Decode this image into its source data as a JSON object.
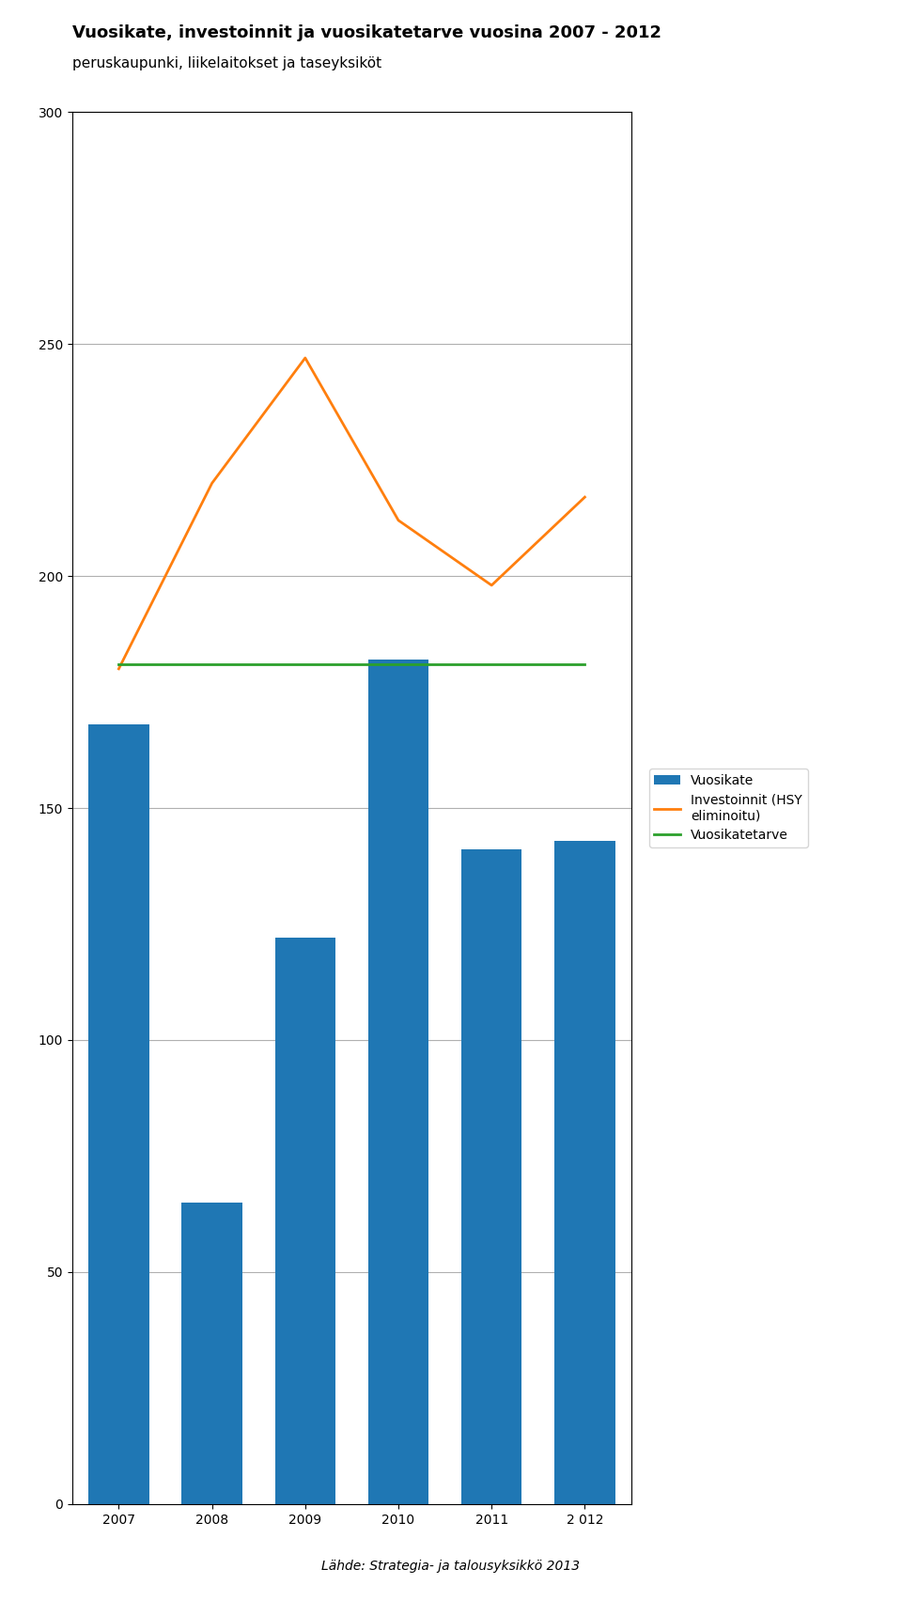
{
  "chart_data": {
    "type": "bar",
    "title": "Vuosikate, investoinnit ja vuosikatetarve vuosina 2007 - 2012",
    "subtitle": "peruskaupunki, liikelaitokset ja taseyksiköt",
    "annotations": [
      "Lähde: Strategia- ja talousyksikkö 2013"
    ],
    "categories": [
      "2007",
      "2008",
      "2009",
      "2010",
      "2011",
      "2 012"
    ],
    "series": [
      {
        "name": "Vuosikate",
        "type": "bar",
        "values": [
          168,
          65,
          122,
          182,
          141,
          143
        ]
      },
      {
        "name": "Investoinnit (HSY\neliminoitu)",
        "type": "line",
        "values": [
          180,
          220,
          247,
          212,
          198,
          217
        ]
      },
      {
        "name": "Vuosikatetarve",
        "type": "line",
        "values": [
          181,
          181,
          181,
          181,
          181,
          181
        ]
      }
    ],
    "ylim": [
      0,
      300
    ],
    "yticks": [
      0,
      50,
      100,
      150,
      200,
      250,
      300
    ],
    "grid": true,
    "legend": "right"
  }
}
